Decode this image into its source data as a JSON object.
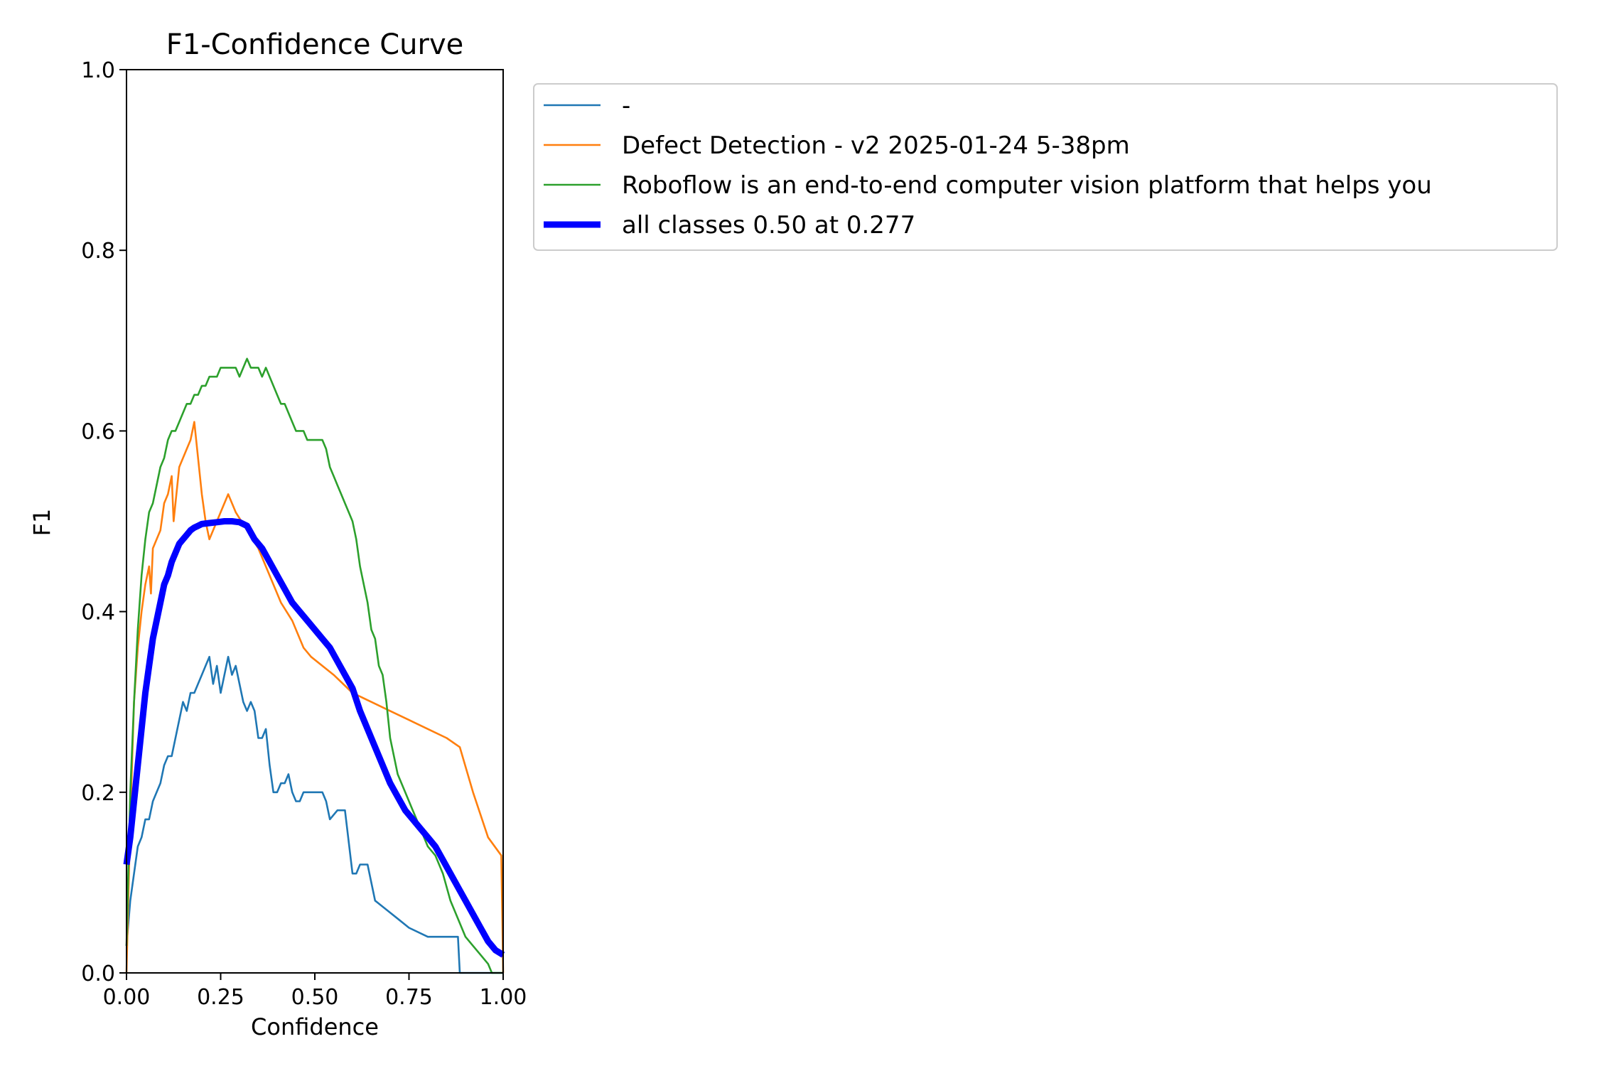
{
  "chart_data": {
    "type": "line",
    "title": "F1-Confidence Curve",
    "xlabel": "Confidence",
    "ylabel": "F1",
    "xlim": [
      0,
      1
    ],
    "ylim": [
      0,
      1
    ],
    "xticks": [
      "0.00",
      "0.25",
      "0.50",
      "0.75",
      "1.00"
    ],
    "yticks": [
      "0.0",
      "0.2",
      "0.4",
      "0.6",
      "0.8",
      "1.0"
    ],
    "grid": false,
    "legend_placement": "outside-top-right",
    "series": [
      {
        "name": "-",
        "color": "#1f77b4",
        "width": "thin",
        "x": [
          0.0,
          0.01,
          0.02,
          0.03,
          0.04,
          0.05,
          0.06,
          0.07,
          0.08,
          0.09,
          0.1,
          0.11,
          0.12,
          0.13,
          0.14,
          0.15,
          0.16,
          0.17,
          0.18,
          0.19,
          0.2,
          0.21,
          0.22,
          0.23,
          0.24,
          0.25,
          0.26,
          0.27,
          0.28,
          0.29,
          0.3,
          0.31,
          0.32,
          0.33,
          0.34,
          0.35,
          0.36,
          0.37,
          0.38,
          0.39,
          0.4,
          0.41,
          0.42,
          0.43,
          0.44,
          0.45,
          0.46,
          0.47,
          0.48,
          0.49,
          0.5,
          0.52,
          0.53,
          0.54,
          0.56,
          0.58,
          0.6,
          0.61,
          0.62,
          0.64,
          0.66,
          0.69,
          0.72,
          0.75,
          0.8,
          0.85,
          0.88,
          0.885,
          0.9,
          0.95,
          1.0
        ],
        "y": [
          0.03,
          0.08,
          0.11,
          0.14,
          0.15,
          0.17,
          0.17,
          0.19,
          0.2,
          0.21,
          0.23,
          0.24,
          0.24,
          0.26,
          0.28,
          0.3,
          0.29,
          0.31,
          0.31,
          0.32,
          0.33,
          0.34,
          0.35,
          0.32,
          0.34,
          0.31,
          0.33,
          0.35,
          0.33,
          0.34,
          0.32,
          0.3,
          0.29,
          0.3,
          0.29,
          0.26,
          0.26,
          0.27,
          0.23,
          0.2,
          0.2,
          0.21,
          0.21,
          0.22,
          0.2,
          0.19,
          0.19,
          0.2,
          0.2,
          0.2,
          0.2,
          0.2,
          0.19,
          0.17,
          0.18,
          0.18,
          0.11,
          0.11,
          0.12,
          0.12,
          0.08,
          0.07,
          0.06,
          0.05,
          0.04,
          0.04,
          0.04,
          0.0,
          0.0,
          0.0,
          0.0
        ]
      },
      {
        "name": "Defect Detection - v2 2025-01-24 5-38pm",
        "color": "#ff7f0e",
        "width": "thin",
        "x": [
          0.0,
          0.01,
          0.02,
          0.03,
          0.04,
          0.05,
          0.06,
          0.065,
          0.07,
          0.08,
          0.09,
          0.1,
          0.11,
          0.12,
          0.125,
          0.13,
          0.14,
          0.15,
          0.16,
          0.17,
          0.18,
          0.19,
          0.2,
          0.21,
          0.22,
          0.24,
          0.25,
          0.27,
          0.29,
          0.32,
          0.35,
          0.38,
          0.41,
          0.44,
          0.47,
          0.49,
          0.55,
          0.6,
          0.65,
          0.7,
          0.75,
          0.8,
          0.85,
          0.885,
          0.92,
          0.96,
          0.995,
          1.0
        ],
        "y": [
          0.0,
          0.17,
          0.3,
          0.36,
          0.4,
          0.43,
          0.45,
          0.42,
          0.47,
          0.48,
          0.49,
          0.52,
          0.53,
          0.55,
          0.5,
          0.52,
          0.56,
          0.57,
          0.58,
          0.59,
          0.61,
          0.57,
          0.53,
          0.5,
          0.48,
          0.5,
          0.51,
          0.53,
          0.51,
          0.49,
          0.47,
          0.44,
          0.41,
          0.39,
          0.36,
          0.35,
          0.33,
          0.31,
          0.3,
          0.29,
          0.28,
          0.27,
          0.26,
          0.25,
          0.2,
          0.15,
          0.13,
          0.0
        ]
      },
      {
        "name": "Roboflow is an end-to-end computer vision platform that helps you",
        "color": "#2ca02c",
        "width": "thin",
        "x": [
          0.0,
          0.01,
          0.02,
          0.03,
          0.04,
          0.05,
          0.06,
          0.07,
          0.08,
          0.09,
          0.1,
          0.11,
          0.12,
          0.13,
          0.14,
          0.15,
          0.16,
          0.17,
          0.18,
          0.19,
          0.2,
          0.21,
          0.22,
          0.23,
          0.24,
          0.25,
          0.26,
          0.27,
          0.28,
          0.29,
          0.3,
          0.31,
          0.32,
          0.33,
          0.34,
          0.35,
          0.36,
          0.37,
          0.38,
          0.39,
          0.4,
          0.41,
          0.42,
          0.43,
          0.44,
          0.45,
          0.46,
          0.47,
          0.48,
          0.49,
          0.5,
          0.51,
          0.52,
          0.53,
          0.54,
          0.55,
          0.56,
          0.57,
          0.58,
          0.59,
          0.6,
          0.61,
          0.62,
          0.63,
          0.64,
          0.65,
          0.66,
          0.67,
          0.68,
          0.69,
          0.7,
          0.72,
          0.74,
          0.76,
          0.78,
          0.8,
          0.82,
          0.84,
          0.86,
          0.88,
          0.9,
          0.92,
          0.94,
          0.96,
          0.97,
          1.0
        ],
        "y": [
          0.03,
          0.2,
          0.3,
          0.38,
          0.44,
          0.48,
          0.51,
          0.52,
          0.54,
          0.56,
          0.57,
          0.59,
          0.6,
          0.6,
          0.61,
          0.62,
          0.63,
          0.63,
          0.64,
          0.64,
          0.65,
          0.65,
          0.66,
          0.66,
          0.66,
          0.67,
          0.67,
          0.67,
          0.67,
          0.67,
          0.66,
          0.67,
          0.68,
          0.67,
          0.67,
          0.67,
          0.66,
          0.67,
          0.66,
          0.65,
          0.64,
          0.63,
          0.63,
          0.62,
          0.61,
          0.6,
          0.6,
          0.6,
          0.59,
          0.59,
          0.59,
          0.59,
          0.59,
          0.58,
          0.56,
          0.55,
          0.54,
          0.53,
          0.52,
          0.51,
          0.5,
          0.48,
          0.45,
          0.43,
          0.41,
          0.38,
          0.37,
          0.34,
          0.33,
          0.3,
          0.26,
          0.22,
          0.2,
          0.18,
          0.16,
          0.14,
          0.13,
          0.11,
          0.08,
          0.06,
          0.04,
          0.03,
          0.02,
          0.01,
          0.0,
          0.0
        ]
      },
      {
        "name": "all classes 0.50 at 0.277",
        "color": "#0000ff",
        "width": "thick",
        "x": [
          0.0,
          0.01,
          0.02,
          0.03,
          0.04,
          0.05,
          0.06,
          0.07,
          0.08,
          0.09,
          0.1,
          0.11,
          0.12,
          0.13,
          0.14,
          0.15,
          0.16,
          0.17,
          0.18,
          0.19,
          0.2,
          0.22,
          0.24,
          0.26,
          0.28,
          0.3,
          0.32,
          0.34,
          0.36,
          0.38,
          0.4,
          0.42,
          0.44,
          0.46,
          0.48,
          0.5,
          0.52,
          0.54,
          0.56,
          0.58,
          0.6,
          0.62,
          0.64,
          0.66,
          0.68,
          0.7,
          0.72,
          0.74,
          0.76,
          0.78,
          0.8,
          0.82,
          0.84,
          0.86,
          0.88,
          0.9,
          0.92,
          0.94,
          0.96,
          0.98,
          1.0
        ],
        "y": [
          0.12,
          0.15,
          0.19,
          0.23,
          0.27,
          0.31,
          0.34,
          0.37,
          0.39,
          0.41,
          0.43,
          0.44,
          0.455,
          0.465,
          0.475,
          0.48,
          0.485,
          0.49,
          0.493,
          0.495,
          0.497,
          0.498,
          0.499,
          0.5,
          0.5,
          0.499,
          0.495,
          0.48,
          0.47,
          0.455,
          0.44,
          0.425,
          0.41,
          0.4,
          0.39,
          0.38,
          0.37,
          0.36,
          0.345,
          0.33,
          0.315,
          0.29,
          0.27,
          0.25,
          0.23,
          0.21,
          0.195,
          0.18,
          0.17,
          0.16,
          0.15,
          0.14,
          0.125,
          0.11,
          0.095,
          0.08,
          0.065,
          0.05,
          0.035,
          0.025,
          0.02
        ]
      }
    ]
  }
}
